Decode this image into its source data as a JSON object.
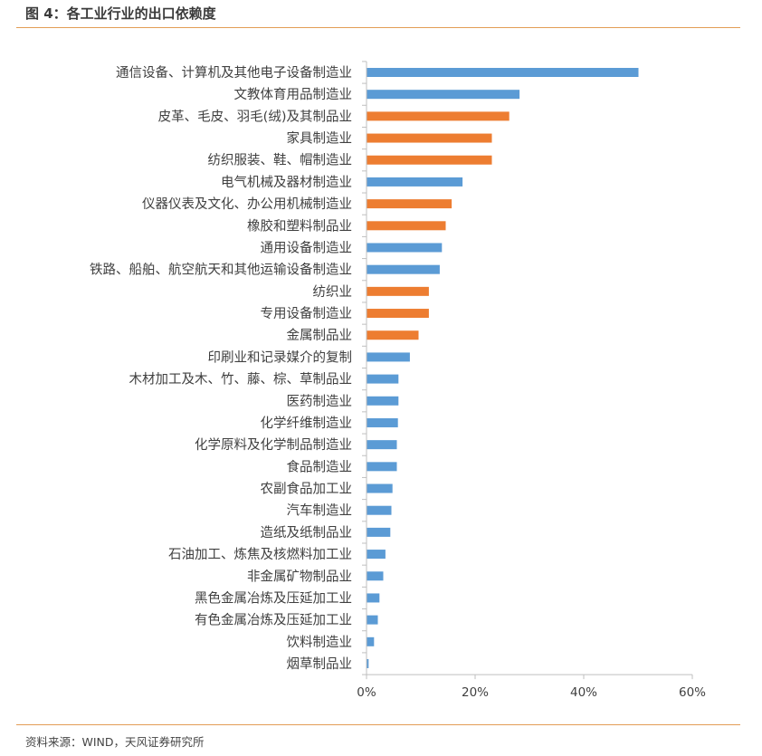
{
  "header": {
    "figure_label": "图 4：各工业行业的出口依赖度"
  },
  "footer": {
    "source": "资料来源：WIND，天风证券研究所"
  },
  "colors": {
    "blue": "#5b9bd5",
    "orange": "#ed7d31",
    "rule": "#e29d55",
    "axis": "#bfbfbf"
  },
  "chart_data": {
    "type": "bar",
    "orientation": "horizontal",
    "title": "",
    "xlabel": "",
    "ylabel": "",
    "xlim": [
      0,
      0.6
    ],
    "xticks": [
      "0%",
      "20%",
      "40%",
      "60%"
    ],
    "grid": false,
    "legend": "none",
    "categories": [
      "通信设备、计算机及其他电子设备制造业",
      "文教体育用品制造业",
      "皮革、毛皮、羽毛(绒)及其制品业",
      "家具制造业",
      "纺织服装、鞋、帽制造业",
      "电气机械及器材制造业",
      "仪器仪表及文化、办公用机械制造业",
      "橡胶和塑料制品业",
      "通用设备制造业",
      "铁路、船舶、航空航天和其他运输设备制造业",
      "纺织业",
      "专用设备制造业",
      "金属制品业",
      "印刷业和记录媒介的复制",
      "木材加工及木、竹、藤、棕、草制品业",
      "医药制造业",
      "化学纤维制造业",
      "化学原料及化学制品制造业",
      "食品制造业",
      "农副食品加工业",
      "汽车制造业",
      "造纸及纸制品业",
      "石油加工、炼焦及核燃料加工业",
      "非金属矿物制品业",
      "黑色金属冶炼及压延加工业",
      "有色金属冶炼及压延加工业",
      "饮料制造业",
      "烟草制品业"
    ],
    "values": [
      0.5,
      0.281,
      0.262,
      0.23,
      0.23,
      0.176,
      0.156,
      0.145,
      0.138,
      0.134,
      0.114,
      0.114,
      0.095,
      0.079,
      0.058,
      0.058,
      0.057,
      0.055,
      0.055,
      0.047,
      0.045,
      0.043,
      0.034,
      0.03,
      0.023,
      0.02,
      0.013,
      0.003
    ],
    "bar_colors": [
      "blue",
      "blue",
      "orange",
      "orange",
      "orange",
      "blue",
      "orange",
      "orange",
      "blue",
      "blue",
      "orange",
      "orange",
      "orange",
      "blue",
      "blue",
      "blue",
      "blue",
      "blue",
      "blue",
      "blue",
      "blue",
      "blue",
      "blue",
      "blue",
      "blue",
      "blue",
      "blue",
      "blue"
    ]
  }
}
